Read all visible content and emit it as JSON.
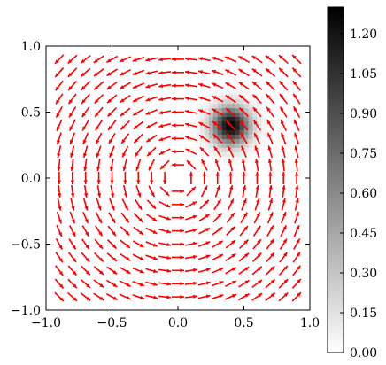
{
  "chart_data": {
    "type": "heatmap",
    "title": "",
    "xlabel": "",
    "ylabel": "",
    "xlim": [
      -1.0,
      1.0
    ],
    "ylim": [
      -1.0,
      1.0
    ],
    "x_ticks": [
      "−1.0",
      "−0.5",
      "0.0",
      "0.5",
      "1.0"
    ],
    "x_tick_values": [
      -1.0,
      -0.5,
      0.0,
      0.5,
      1.0
    ],
    "y_ticks": [
      "−1.0",
      "−0.5",
      "0.0",
      "0.5",
      "1.0"
    ],
    "y_tick_values": [
      -1.0,
      -0.5,
      0.0,
      0.5,
      1.0
    ],
    "heatmap": {
      "colormap": "gray_r",
      "peak_center": [
        0.4,
        0.4
      ],
      "peak_value": 1.3,
      "peak_width": 0.1
    },
    "colorbar": {
      "range": [
        0.0,
        1.3
      ],
      "tick_values": [
        0.0,
        0.15,
        0.3,
        0.45,
        0.6,
        0.75,
        0.9,
        1.05,
        1.2
      ],
      "tick_labels": [
        "0.00",
        "0.15",
        "0.30",
        "0.45",
        "0.60",
        "0.75",
        "0.90",
        "1.05",
        "1.20"
      ]
    },
    "quiver": {
      "color": "#ff0000",
      "field": "counter-clockwise rotation (u = -y, v = x), unit-length arrows",
      "grid_min": -0.9,
      "grid_max": 0.9,
      "grid_count": 19
    },
    "grid": false
  }
}
